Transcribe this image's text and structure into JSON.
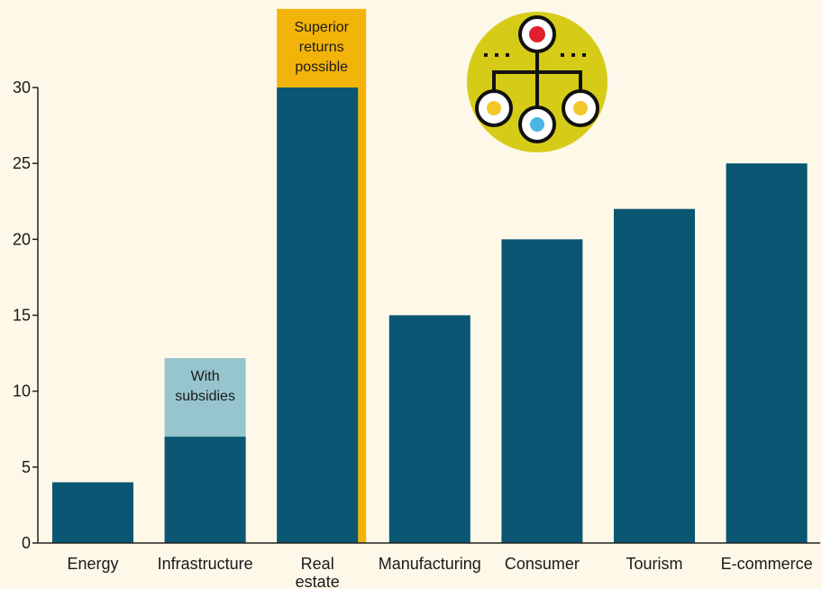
{
  "chart_data": {
    "type": "bar",
    "categories": [
      [
        "Energy"
      ],
      [
        "Infrastructure"
      ],
      [
        "Real",
        "estate"
      ],
      [
        "Manufacturing"
      ],
      [
        "Consumer"
      ],
      [
        "Tourism"
      ],
      [
        "E-commerce"
      ]
    ],
    "values": [
      4,
      7,
      30,
      15,
      20,
      22,
      25
    ],
    "ylim": [
      0,
      30
    ],
    "yticks": [
      0,
      5,
      10,
      15,
      20,
      25,
      30
    ],
    "grid": false,
    "bar_color": "#0b5672",
    "range_annotations": [
      {
        "category_index": 1,
        "from": 7,
        "to": 12,
        "color": "#96c5cd",
        "text": [
          "With",
          "subsidies"
        ]
      },
      {
        "category_index": 2,
        "from": 30,
        "to": 35,
        "color": "#f3b40a",
        "text": [
          "Superior",
          "returns",
          "possible"
        ]
      }
    ]
  },
  "icon": {
    "name": "hierarchy-network-icon",
    "bg": "#d6cc18",
    "colors": [
      "#e0202b",
      "#f3c62a",
      "#4bb6e6"
    ]
  }
}
